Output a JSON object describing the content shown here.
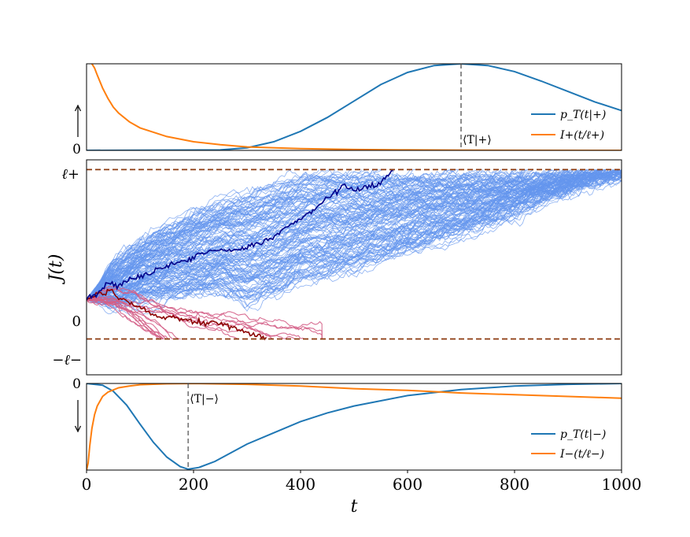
{
  "chart_data": [
    {
      "panel": "top",
      "type": "line",
      "xlim": [
        0,
        1000
      ],
      "ylim": [
        0,
        1
      ],
      "ytick_labels": [
        "0"
      ],
      "arrow": "up",
      "grid": false,
      "legend_position": "bottom-right",
      "series": [
        {
          "name": "p_T(t|+)",
          "color": "#1f77b4",
          "x": [
            0,
            250,
            300,
            350,
            400,
            450,
            500,
            550,
            600,
            650,
            700,
            750,
            800,
            850,
            900,
            950,
            1000
          ],
          "y": [
            0,
            0.005,
            0.03,
            0.1,
            0.22,
            0.38,
            0.57,
            0.76,
            0.9,
            0.98,
            1.0,
            0.98,
            0.91,
            0.8,
            0.68,
            0.56,
            0.46
          ]
        },
        {
          "name": "I+(t/ℓ+)",
          "color": "#ff7f0e",
          "x": [
            10,
            15,
            20,
            30,
            40,
            50,
            60,
            80,
            100,
            150,
            200,
            250,
            300,
            400,
            500,
            600,
            700,
            1000
          ],
          "y": [
            1.0,
            0.95,
            0.87,
            0.72,
            0.6,
            0.5,
            0.43,
            0.33,
            0.26,
            0.16,
            0.1,
            0.065,
            0.04,
            0.02,
            0.01,
            0.005,
            0.002,
            0
          ]
        }
      ],
      "vline": {
        "x": 700,
        "label": "⟨T|+⟩"
      }
    },
    {
      "panel": "middle",
      "type": "line",
      "ylabel": "J(t)",
      "xlim": [
        0,
        1000
      ],
      "ylim": [
        -1.15,
        2.15
      ],
      "hlines": [
        {
          "y": 2,
          "label": "ℓ+"
        },
        {
          "y": -0.6,
          "label": "−ℓ−"
        }
      ],
      "ytick_labels": [
        "ℓ+",
        "0",
        "−ℓ−"
      ],
      "hline_color": "#8b3a0f",
      "band_color": "#6495ed",
      "band_upper": {
        "x": [
          0,
          50,
          100,
          200,
          300,
          400,
          500,
          560,
          600
        ],
        "y": [
          0,
          0.55,
          0.9,
          1.35,
          1.65,
          1.9,
          2.0,
          2.0,
          2.0
        ]
      },
      "band_lower": {
        "x": [
          0,
          60,
          150,
          250,
          300,
          350,
          400,
          500,
          600,
          700,
          800,
          900,
          1000
        ],
        "y": [
          0,
          -0.08,
          0.05,
          0.12,
          -0.05,
          0.05,
          0.28,
          0.46,
          0.75,
          1.02,
          1.35,
          1.7,
          2.0
        ]
      },
      "highlight_up": {
        "color": "#00008b",
        "x": [
          0,
          20,
          40,
          60,
          80,
          100,
          130,
          160,
          190,
          220,
          250,
          280,
          300,
          330,
          350,
          370,
          390,
          420,
          440,
          460,
          480,
          500,
          520,
          540,
          560,
          575
        ],
        "y": [
          0,
          0.1,
          0.28,
          0.22,
          0.32,
          0.35,
          0.45,
          0.55,
          0.62,
          0.74,
          0.76,
          0.76,
          0.8,
          0.88,
          0.97,
          1.12,
          1.2,
          1.35,
          1.5,
          1.62,
          1.75,
          1.7,
          1.72,
          1.75,
          1.88,
          2.0
        ]
      },
      "highlight_down": {
        "color": "#8b0000",
        "x": [
          0,
          10,
          20,
          30,
          40,
          50,
          60,
          70,
          80,
          100,
          120,
          140,
          160,
          180,
          200,
          220,
          240,
          260,
          280,
          300,
          320,
          338
        ],
        "y": [
          0,
          0.05,
          0.1,
          0.08,
          0.15,
          0.12,
          0.02,
          0.0,
          -0.05,
          -0.1,
          -0.22,
          -0.28,
          -0.25,
          -0.3,
          -0.33,
          -0.36,
          -0.33,
          -0.4,
          -0.45,
          -0.52,
          -0.55,
          -0.6
        ]
      },
      "pink_color": "#d45f87"
    },
    {
      "panel": "bottom",
      "type": "line",
      "xlabel": "t",
      "xlim": [
        0,
        1000
      ],
      "ylim": [
        -1,
        0
      ],
      "xticks": [
        0,
        200,
        400,
        600,
        800,
        1000
      ],
      "ytick_labels": [
        "0"
      ],
      "arrow": "down",
      "grid": false,
      "legend_position": "bottom-right",
      "series": [
        {
          "name": "p_T(t|−)",
          "color": "#1f77b4",
          "x": [
            0,
            30,
            50,
            75,
            100,
            125,
            150,
            175,
            190,
            210,
            240,
            270,
            300,
            350,
            400,
            450,
            500,
            600,
            700,
            800,
            900,
            1000
          ],
          "y": [
            0,
            -0.02,
            -0.09,
            -0.25,
            -0.47,
            -0.68,
            -0.85,
            -0.96,
            -0.99,
            -0.97,
            -0.9,
            -0.8,
            -0.7,
            -0.57,
            -0.44,
            -0.34,
            -0.26,
            -0.14,
            -0.07,
            -0.03,
            -0.01,
            0
          ]
        },
        {
          "name": "I−(t/ℓ−)",
          "color": "#ff7f0e",
          "x": [
            0,
            3,
            6,
            10,
            15,
            20,
            30,
            40,
            60,
            80,
            100,
            150,
            200,
            300,
            400,
            500,
            600,
            700,
            800,
            900,
            1000
          ],
          "y": [
            -1.0,
            -0.92,
            -0.72,
            -0.52,
            -0.36,
            -0.26,
            -0.15,
            -0.1,
            -0.05,
            -0.03,
            -0.015,
            -0.004,
            0,
            -0.01,
            -0.03,
            -0.06,
            -0.08,
            -0.11,
            -0.13,
            -0.15,
            -0.17
          ]
        }
      ],
      "vline": {
        "x": 190,
        "label": "⟨T|−⟩"
      }
    }
  ]
}
